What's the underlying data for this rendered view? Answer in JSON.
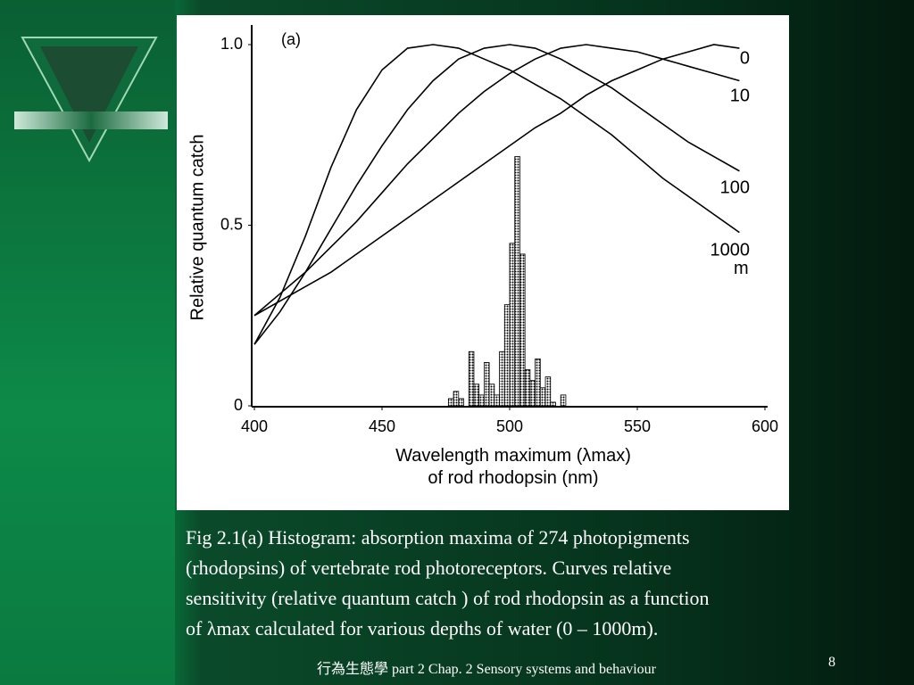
{
  "chart_data": {
    "type": "line",
    "annotation": "(a)",
    "unit_label": "m",
    "ylabel": "Relative quantum catch",
    "xlabel": [
      "Wavelength maximum (λmax)",
      "of rod rhodopsin (nm)"
    ],
    "xlim": [
      400,
      600
    ],
    "xticks": [
      400,
      450,
      500,
      550,
      600
    ],
    "ylim": [
      0,
      1
    ],
    "yticks": [
      0,
      0.5,
      {
        "value": 1,
        "label": "1.0"
      }
    ],
    "x": [
      400,
      410,
      420,
      430,
      440,
      450,
      460,
      470,
      480,
      490,
      500,
      510,
      520,
      530,
      540,
      550,
      560,
      570,
      580,
      590
    ],
    "series": [
      {
        "name": "0",
        "color": "#000000",
        "values": [
          0.25,
          0.29,
          0.33,
          0.37,
          0.42,
          0.47,
          0.52,
          0.57,
          0.62,
          0.67,
          0.72,
          0.77,
          0.81,
          0.86,
          0.9,
          0.93,
          0.96,
          0.98,
          1.0,
          0.99
        ]
      },
      {
        "name": "10",
        "color": "#000000",
        "values": [
          0.25,
          0.31,
          0.37,
          0.44,
          0.51,
          0.59,
          0.67,
          0.74,
          0.81,
          0.87,
          0.92,
          0.96,
          0.99,
          1.0,
          0.99,
          0.98,
          0.96,
          0.94,
          0.92,
          0.9
        ]
      },
      {
        "name": "100",
        "color": "#000000",
        "values": [
          0.17,
          0.26,
          0.37,
          0.49,
          0.61,
          0.72,
          0.82,
          0.9,
          0.96,
          0.99,
          1.0,
          0.99,
          0.96,
          0.92,
          0.88,
          0.83,
          0.78,
          0.73,
          0.69,
          0.65
        ]
      },
      {
        "name": "1000",
        "color": "#000000",
        "values": [
          0.17,
          0.3,
          0.47,
          0.66,
          0.82,
          0.93,
          0.99,
          1.0,
          0.99,
          0.96,
          0.93,
          0.89,
          0.85,
          0.8,
          0.75,
          0.69,
          0.63,
          0.58,
          0.53,
          0.48
        ]
      }
    ],
    "histogram": {
      "type": "histogram",
      "color": "#000000",
      "bins": [
        476,
        478,
        480,
        482,
        484,
        486,
        488,
        490,
        492,
        494,
        496,
        498,
        500,
        502,
        504,
        506,
        508,
        510,
        512,
        514,
        516,
        518,
        520,
        522
      ],
      "values": [
        0.02,
        0.04,
        0.02,
        0.0,
        0.15,
        0.06,
        0.03,
        0.12,
        0.06,
        0.03,
        0.15,
        0.28,
        0.45,
        0.69,
        0.42,
        0.1,
        0.07,
        0.13,
        0.05,
        0.08,
        0.01,
        0.0,
        0.03
      ]
    }
  },
  "caption": [
    "Fig 2.1(a) Histogram: absorption maxima of 274 photopigments",
    "(rhodopsins) of vertebrate rod photoreceptors.  Curves relative",
    "sensitivity (relative quantum catch ) of rod rhodopsin as a function",
    "of λmax calculated for various depths of water (0 – 1000m)."
  ],
  "footer": "行為生態學 part 2 Chap. 2 Sensory systems and behaviour",
  "page_number": "8"
}
